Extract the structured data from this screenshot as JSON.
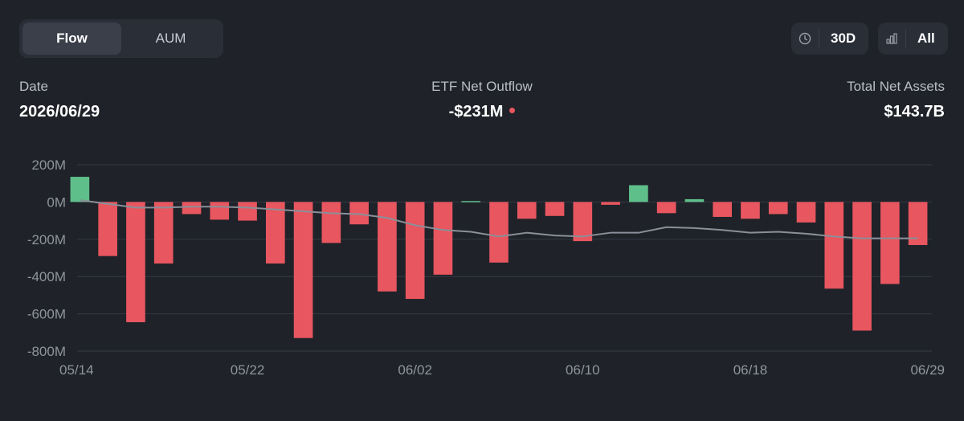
{
  "tabs": {
    "flow": "Flow",
    "aum": "AUM"
  },
  "range": {
    "period": "30D",
    "view": "All"
  },
  "stats": {
    "date_label": "Date",
    "date_value": "2026/06/29",
    "flow_label": "ETF Net Outflow",
    "flow_value": "-$231M",
    "assets_label": "Total Net Assets",
    "assets_value": "$143.7B"
  },
  "colors": {
    "positive": "#5fbf8a",
    "negative": "#e8565f",
    "line": "#8a8f99",
    "background": "#1f2229"
  },
  "chart_data": {
    "type": "bar",
    "title": "",
    "y_unit": "M",
    "ylim": [
      -800,
      200
    ],
    "y_ticks": [
      "200M",
      "0M",
      "-200M",
      "-400M",
      "-600M",
      "-800M"
    ],
    "y_tick_values": [
      200,
      0,
      -200,
      -400,
      -600,
      -800
    ],
    "x_tick_labels": [
      "05/14",
      "05/22",
      "06/02",
      "06/10",
      "06/18",
      "06/29"
    ],
    "x_tick_indices": [
      0,
      6,
      12,
      18,
      24,
      30
    ],
    "grid": true,
    "series": [
      {
        "type": "bar",
        "values": [
          135,
          -290,
          -645,
          -330,
          -65,
          -95,
          -100,
          -330,
          -730,
          -220,
          -120,
          -480,
          -520,
          -390,
          5,
          -325,
          -90,
          -75,
          -210,
          -15,
          90,
          -60,
          15,
          -80,
          -90,
          -65,
          -110,
          -465,
          -690,
          -440,
          -231
        ]
      },
      {
        "type": "line",
        "values": [
          10,
          -10,
          -30,
          -30,
          -25,
          -25,
          -30,
          -40,
          -50,
          -60,
          -65,
          -85,
          -125,
          -150,
          -160,
          -185,
          -165,
          -180,
          -185,
          -165,
          -165,
          -135,
          -140,
          -150,
          -165,
          -160,
          -170,
          -185,
          -195,
          -195,
          -195
        ]
      }
    ]
  }
}
